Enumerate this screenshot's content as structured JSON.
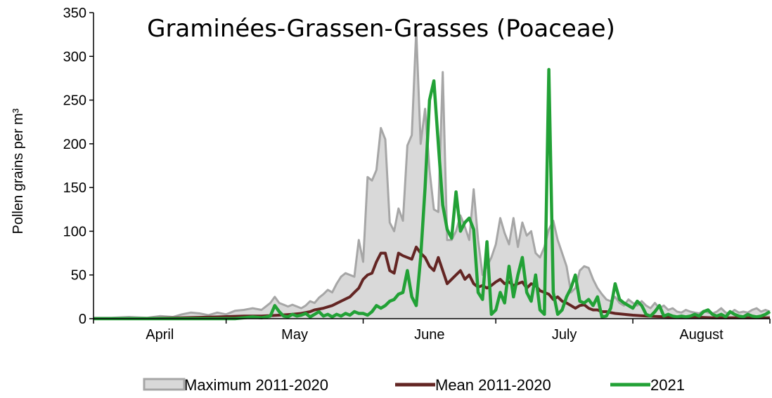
{
  "chart_data": {
    "type": "line",
    "title": "Graminées-Grassen-Grasses (Poaceae)",
    "ylabel": "Pollen grains per m³",
    "xlabel": "",
    "ylim": [
      0,
      350
    ],
    "yticks": [
      0,
      50,
      100,
      150,
      200,
      250,
      300,
      350
    ],
    "x_domain": [
      0,
      153
    ],
    "months": [
      {
        "label": "April",
        "start": 0,
        "end": 30
      },
      {
        "label": "May",
        "start": 30,
        "end": 61
      },
      {
        "label": "June",
        "start": 61,
        "end": 91
      },
      {
        "label": "July",
        "start": 91,
        "end": 122
      },
      {
        "label": "August",
        "start": 122,
        "end": 153
      }
    ],
    "legend_position": "bottom",
    "series": [
      {
        "name": "Maximum 2011-2020",
        "style": "area",
        "color": "#a6a6a6",
        "fill": "#d9d9d9",
        "points": [
          [
            0,
            1
          ],
          [
            4,
            1
          ],
          [
            8,
            2
          ],
          [
            12,
            1
          ],
          [
            15,
            3
          ],
          [
            18,
            2
          ],
          [
            20,
            5
          ],
          [
            22,
            7
          ],
          [
            24,
            6
          ],
          [
            26,
            4
          ],
          [
            28,
            7
          ],
          [
            30,
            5
          ],
          [
            32,
            9
          ],
          [
            34,
            10
          ],
          [
            36,
            12
          ],
          [
            38,
            10
          ],
          [
            40,
            18
          ],
          [
            41,
            25
          ],
          [
            42,
            18
          ],
          [
            44,
            14
          ],
          [
            45,
            16
          ],
          [
            46,
            14
          ],
          [
            47,
            12
          ],
          [
            48,
            15
          ],
          [
            49,
            20
          ],
          [
            50,
            18
          ],
          [
            51,
            24
          ],
          [
            52,
            28
          ],
          [
            53,
            33
          ],
          [
            54,
            30
          ],
          [
            55,
            40
          ],
          [
            56,
            48
          ],
          [
            57,
            52
          ],
          [
            58,
            50
          ],
          [
            59,
            48
          ],
          [
            60,
            90
          ],
          [
            61,
            65
          ],
          [
            62,
            162
          ],
          [
            63,
            158
          ],
          [
            64,
            170
          ],
          [
            65,
            218
          ],
          [
            66,
            205
          ],
          [
            67,
            110
          ],
          [
            68,
            100
          ],
          [
            69,
            126
          ],
          [
            70,
            112
          ],
          [
            71,
            198
          ],
          [
            72,
            210
          ],
          [
            73,
            330
          ],
          [
            74,
            200
          ],
          [
            75,
            240
          ],
          [
            76,
            170
          ],
          [
            77,
            125
          ],
          [
            78,
            122
          ],
          [
            79,
            282
          ],
          [
            80,
            90
          ],
          [
            81,
            90
          ],
          [
            82,
            100
          ],
          [
            83,
            118
          ],
          [
            84,
            105
          ],
          [
            85,
            90
          ],
          [
            86,
            148
          ],
          [
            87,
            90
          ],
          [
            88,
            50
          ],
          [
            89,
            60
          ],
          [
            90,
            70
          ],
          [
            91,
            85
          ],
          [
            92,
            115
          ],
          [
            93,
            98
          ],
          [
            94,
            85
          ],
          [
            95,
            115
          ],
          [
            96,
            82
          ],
          [
            97,
            110
          ],
          [
            98,
            95
          ],
          [
            99,
            100
          ],
          [
            100,
            75
          ],
          [
            101,
            70
          ],
          [
            102,
            82
          ],
          [
            103,
            102
          ],
          [
            104,
            112
          ],
          [
            105,
            90
          ],
          [
            106,
            75
          ],
          [
            107,
            60
          ],
          [
            108,
            30
          ],
          [
            109,
            35
          ],
          [
            110,
            55
          ],
          [
            111,
            60
          ],
          [
            112,
            58
          ],
          [
            113,
            45
          ],
          [
            114,
            35
          ],
          [
            115,
            28
          ],
          [
            116,
            22
          ],
          [
            117,
            20
          ],
          [
            118,
            25
          ],
          [
            119,
            18
          ],
          [
            120,
            15
          ],
          [
            121,
            22
          ],
          [
            122,
            18
          ],
          [
            123,
            15
          ],
          [
            124,
            20
          ],
          [
            125,
            15
          ],
          [
            126,
            12
          ],
          [
            127,
            18
          ],
          [
            128,
            12
          ],
          [
            129,
            15
          ],
          [
            130,
            10
          ],
          [
            131,
            12
          ],
          [
            132,
            8
          ],
          [
            133,
            7
          ],
          [
            134,
            10
          ],
          [
            135,
            8
          ],
          [
            136,
            7
          ],
          [
            137,
            6
          ],
          [
            138,
            9
          ],
          [
            139,
            7
          ],
          [
            140,
            6
          ],
          [
            141,
            8
          ],
          [
            142,
            12
          ],
          [
            143,
            7
          ],
          [
            144,
            6
          ],
          [
            145,
            10
          ],
          [
            146,
            7
          ],
          [
            147,
            8
          ],
          [
            148,
            7
          ],
          [
            149,
            10
          ],
          [
            150,
            12
          ],
          [
            151,
            8
          ],
          [
            152,
            10
          ],
          [
            153,
            8
          ]
        ]
      },
      {
        "name": "Mean 2011-2020",
        "style": "line",
        "color": "#632523",
        "points": [
          [
            0,
            0
          ],
          [
            10,
            0
          ],
          [
            20,
            1
          ],
          [
            28,
            2
          ],
          [
            34,
            3
          ],
          [
            38,
            3
          ],
          [
            42,
            4
          ],
          [
            45,
            5
          ],
          [
            47,
            6
          ],
          [
            49,
            8
          ],
          [
            50,
            10
          ],
          [
            52,
            12
          ],
          [
            54,
            15
          ],
          [
            56,
            20
          ],
          [
            58,
            25
          ],
          [
            59,
            30
          ],
          [
            60,
            35
          ],
          [
            61,
            45
          ],
          [
            62,
            50
          ],
          [
            63,
            52
          ],
          [
            64,
            65
          ],
          [
            65,
            75
          ],
          [
            66,
            75
          ],
          [
            67,
            55
          ],
          [
            68,
            52
          ],
          [
            69,
            75
          ],
          [
            70,
            72
          ],
          [
            71,
            70
          ],
          [
            72,
            68
          ],
          [
            73,
            82
          ],
          [
            74,
            75
          ],
          [
            75,
            70
          ],
          [
            76,
            60
          ],
          [
            77,
            55
          ],
          [
            78,
            70
          ],
          [
            79,
            55
          ],
          [
            80,
            40
          ],
          [
            81,
            45
          ],
          [
            82,
            50
          ],
          [
            83,
            55
          ],
          [
            84,
            45
          ],
          [
            85,
            50
          ],
          [
            86,
            40
          ],
          [
            87,
            36
          ],
          [
            88,
            38
          ],
          [
            89,
            35
          ],
          [
            90,
            38
          ],
          [
            91,
            42
          ],
          [
            92,
            45
          ],
          [
            93,
            40
          ],
          [
            94,
            42
          ],
          [
            95,
            38
          ],
          [
            96,
            40
          ],
          [
            97,
            42
          ],
          [
            98,
            35
          ],
          [
            99,
            40
          ],
          [
            100,
            38
          ],
          [
            101,
            32
          ],
          [
            102,
            30
          ],
          [
            103,
            28
          ],
          [
            104,
            22
          ],
          [
            105,
            25
          ],
          [
            106,
            20
          ],
          [
            107,
            18
          ],
          [
            108,
            15
          ],
          [
            109,
            12
          ],
          [
            110,
            15
          ],
          [
            111,
            16
          ],
          [
            112,
            12
          ],
          [
            113,
            10
          ],
          [
            114,
            10
          ],
          [
            115,
            8
          ],
          [
            116,
            8
          ],
          [
            117,
            7
          ],
          [
            118,
            6
          ],
          [
            120,
            5
          ],
          [
            122,
            4
          ],
          [
            125,
            3
          ],
          [
            130,
            2
          ],
          [
            135,
            2
          ],
          [
            140,
            1
          ],
          [
            145,
            1
          ],
          [
            150,
            1
          ],
          [
            153,
            1
          ]
        ]
      },
      {
        "name": "2021",
        "style": "line",
        "color": "#22a136",
        "points": [
          [
            0,
            0
          ],
          [
            28,
            0
          ],
          [
            32,
            0
          ],
          [
            36,
            2
          ],
          [
            38,
            1
          ],
          [
            40,
            3
          ],
          [
            41,
            15
          ],
          [
            42,
            8
          ],
          [
            43,
            3
          ],
          [
            44,
            2
          ],
          [
            45,
            5
          ],
          [
            46,
            3
          ],
          [
            47,
            4
          ],
          [
            48,
            6
          ],
          [
            49,
            2
          ],
          [
            50,
            5
          ],
          [
            51,
            8
          ],
          [
            52,
            3
          ],
          [
            53,
            5
          ],
          [
            54,
            2
          ],
          [
            55,
            5
          ],
          [
            56,
            3
          ],
          [
            57,
            6
          ],
          [
            58,
            4
          ],
          [
            59,
            8
          ],
          [
            60,
            6
          ],
          [
            61,
            6
          ],
          [
            62,
            4
          ],
          [
            63,
            8
          ],
          [
            64,
            15
          ],
          [
            65,
            12
          ],
          [
            66,
            15
          ],
          [
            67,
            20
          ],
          [
            68,
            22
          ],
          [
            69,
            28
          ],
          [
            70,
            30
          ],
          [
            71,
            55
          ],
          [
            72,
            25
          ],
          [
            73,
            15
          ],
          [
            74,
            70
          ],
          [
            75,
            150
          ],
          [
            76,
            250
          ],
          [
            77,
            272
          ],
          [
            78,
            200
          ],
          [
            79,
            130
          ],
          [
            80,
            102
          ],
          [
            81,
            92
          ],
          [
            82,
            145
          ],
          [
            83,
            100
          ],
          [
            84,
            110
          ],
          [
            85,
            115
          ],
          [
            86,
            102
          ],
          [
            87,
            30
          ],
          [
            88,
            22
          ],
          [
            89,
            88
          ],
          [
            90,
            5
          ],
          [
            91,
            10
          ],
          [
            92,
            30
          ],
          [
            93,
            18
          ],
          [
            94,
            60
          ],
          [
            95,
            25
          ],
          [
            96,
            50
          ],
          [
            97,
            70
          ],
          [
            98,
            30
          ],
          [
            99,
            20
          ],
          [
            100,
            50
          ],
          [
            101,
            10
          ],
          [
            102,
            5
          ],
          [
            103,
            285
          ],
          [
            104,
            30
          ],
          [
            105,
            5
          ],
          [
            106,
            10
          ],
          [
            107,
            25
          ],
          [
            108,
            35
          ],
          [
            109,
            50
          ],
          [
            110,
            20
          ],
          [
            111,
            18
          ],
          [
            112,
            22
          ],
          [
            113,
            15
          ],
          [
            114,
            25
          ],
          [
            115,
            2
          ],
          [
            116,
            3
          ],
          [
            117,
            12
          ],
          [
            118,
            40
          ],
          [
            119,
            22
          ],
          [
            120,
            18
          ],
          [
            121,
            15
          ],
          [
            122,
            12
          ],
          [
            123,
            20
          ],
          [
            124,
            15
          ],
          [
            125,
            5
          ],
          [
            126,
            3
          ],
          [
            127,
            8
          ],
          [
            128,
            15
          ],
          [
            129,
            3
          ],
          [
            130,
            5
          ],
          [
            131,
            3
          ],
          [
            132,
            2
          ],
          [
            133,
            3
          ],
          [
            134,
            2
          ],
          [
            135,
            3
          ],
          [
            136,
            5
          ],
          [
            137,
            3
          ],
          [
            138,
            8
          ],
          [
            139,
            10
          ],
          [
            140,
            5
          ],
          [
            141,
            3
          ],
          [
            142,
            5
          ],
          [
            143,
            2
          ],
          [
            144,
            8
          ],
          [
            145,
            5
          ],
          [
            146,
            3
          ],
          [
            147,
            2
          ],
          [
            148,
            5
          ],
          [
            149,
            3
          ],
          [
            150,
            2
          ],
          [
            151,
            3
          ],
          [
            152,
            5
          ],
          [
            153,
            8
          ]
        ]
      }
    ]
  }
}
